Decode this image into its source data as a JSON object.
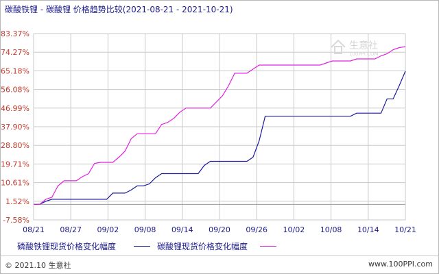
{
  "header": {
    "title": "碳酸铁锂 - 碳酸锂 价格趋势比较(2021-08-21 - 2021-10-21)"
  },
  "watermark": {
    "text": "生意社",
    "sub": "100PPI.COM"
  },
  "legend": {
    "series1_label": "磷酸铁锂现货价格变化幅度",
    "series2_label": "碳酸锂现货价格变化幅度"
  },
  "footer": {
    "left": "© 2021.10 生意社",
    "right": "www.100PPI.com"
  },
  "colors": {
    "series1": "#1a1a9c",
    "series2": "#e020e0",
    "grid": "#c8c8c8",
    "axis_label": "#c0392b"
  },
  "chart_data": {
    "type": "line",
    "title": "碳酸铁锂 - 碳酸锂 价格趋势比较(2021-08-21 - 2021-10-21)",
    "xlabel": "",
    "ylabel": "",
    "ylim": [
      -7.58,
      83.37
    ],
    "y_ticks": [
      "83.37%",
      "74.27%",
      "65.18%",
      "56.08%",
      "46.99%",
      "37.90%",
      "28.80%",
      "19.71%",
      "10.61%",
      "1.52%",
      "-7.58%"
    ],
    "y_tick_values": [
      83.37,
      74.27,
      65.18,
      56.08,
      46.99,
      37.9,
      28.8,
      19.71,
      10.61,
      1.52,
      -7.58
    ],
    "x_ticks": [
      "08/21",
      "08/27",
      "09/02",
      "09/08",
      "09/14",
      "09/20",
      "09/26",
      "10/02",
      "10/08",
      "10/14",
      "10/21"
    ],
    "grid": true,
    "legend_position": "bottom",
    "series": [
      {
        "name": "磷酸铁锂现货价格变化幅度",
        "x": [
          "2021-08-21",
          "2021-08-22",
          "2021-08-23",
          "2021-08-24",
          "2021-09-02",
          "2021-09-03",
          "2021-09-04",
          "2021-09-05",
          "2021-09-06",
          "2021-09-07",
          "2021-09-08",
          "2021-09-09",
          "2021-09-10",
          "2021-09-11",
          "2021-09-17",
          "2021-09-18",
          "2021-09-19",
          "2021-09-25",
          "2021-09-26",
          "2021-09-27",
          "2021-09-28",
          "2021-10-12",
          "2021-10-13",
          "2021-10-17",
          "2021-10-18",
          "2021-10-19",
          "2021-10-20",
          "2021-10-21"
        ],
        "values": [
          0,
          0,
          1.5,
          2.5,
          2.5,
          5.5,
          5.5,
          5.5,
          7,
          9,
          9,
          10,
          13,
          15,
          15,
          19,
          21,
          21,
          23,
          31,
          43,
          43,
          44.5,
          44.5,
          51.5,
          51.5,
          58,
          65
        ]
      },
      {
        "name": "碳酸锂现货价格变化幅度",
        "x": [
          "2021-08-21",
          "2021-08-22",
          "2021-08-23",
          "2021-08-24",
          "2021-08-25",
          "2021-08-26",
          "2021-08-27",
          "2021-08-28",
          "2021-08-29",
          "2021-08-30",
          "2021-08-31",
          "2021-09-01",
          "2021-09-02",
          "2021-09-03",
          "2021-09-04",
          "2021-09-05",
          "2021-09-06",
          "2021-09-07",
          "2021-09-08",
          "2021-09-09",
          "2021-09-10",
          "2021-09-11",
          "2021-09-12",
          "2021-09-13",
          "2021-09-14",
          "2021-09-15",
          "2021-09-16",
          "2021-09-17",
          "2021-09-18",
          "2021-09-19",
          "2021-09-21",
          "2021-09-22",
          "2021-09-23",
          "2021-09-24",
          "2021-09-25",
          "2021-09-26",
          "2021-09-27",
          "2021-09-28",
          "2021-09-29",
          "2021-10-07",
          "2021-10-08",
          "2021-10-09",
          "2021-10-11",
          "2021-10-12",
          "2021-10-13",
          "2021-10-15",
          "2021-10-16",
          "2021-10-17",
          "2021-10-18",
          "2021-10-19",
          "2021-10-20",
          "2021-10-21"
        ],
        "values": [
          0,
          0,
          2.5,
          3.5,
          9,
          11.5,
          11.5,
          11.5,
          13.5,
          15,
          20,
          20.5,
          20.5,
          20.5,
          23,
          26,
          32,
          34.5,
          34.5,
          34.5,
          34.5,
          39,
          40,
          42,
          45,
          47,
          47,
          47,
          47,
          47,
          53,
          58,
          64,
          64,
          64,
          66,
          68,
          68,
          68,
          68,
          69,
          70,
          70,
          70,
          71,
          71,
          71,
          72.5,
          73.5,
          75.5,
          76.5,
          77
        ]
      }
    ]
  }
}
